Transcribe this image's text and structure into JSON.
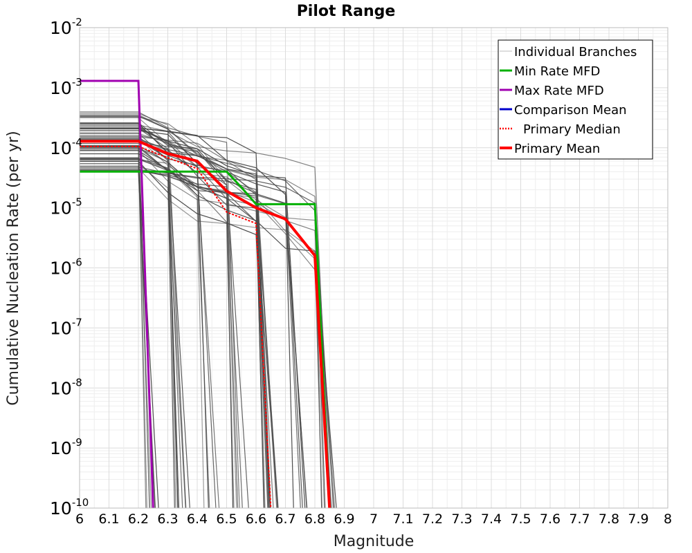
{
  "chart_data": {
    "type": "line",
    "title": "Pilot Range",
    "xlabel": "Magnitude",
    "ylabel": "Cumulative Nucleation Rate (per yr)",
    "xlim": [
      6,
      8
    ],
    "ylim_log10": [
      -10,
      -2
    ],
    "yscale": "log",
    "grid": true,
    "legend_position": "top-right",
    "x_ticks": [
      "6",
      "6.1",
      "6.2",
      "6.3",
      "6.4",
      "6.5",
      "6.6",
      "6.7",
      "6.8",
      "6.9",
      "7",
      "7.1",
      "7.2",
      "7.3",
      "7.4",
      "7.5",
      "7.6",
      "7.7",
      "7.8",
      "7.9",
      "8"
    ],
    "y_ticks": [
      {
        "base": "10",
        "exp": "-2"
      },
      {
        "base": "10",
        "exp": "-3"
      },
      {
        "base": "10",
        "exp": "-4"
      },
      {
        "base": "10",
        "exp": "-5"
      },
      {
        "base": "10",
        "exp": "-6"
      },
      {
        "base": "10",
        "exp": "-7"
      },
      {
        "base": "10",
        "exp": "-8"
      },
      {
        "base": "10",
        "exp": "-9"
      },
      {
        "base": "10",
        "exp": "-10"
      }
    ],
    "legend": [
      {
        "label": "Individual Branches",
        "color": "#bbbbbb",
        "style": "thin"
      },
      {
        "label": "Min Rate MFD",
        "color": "#00b000",
        "style": "solid"
      },
      {
        "label": "Max Rate MFD",
        "color": "#a000b0",
        "style": "solid"
      },
      {
        "label": "Comparison Mean",
        "color": "#0000cc",
        "style": "solid"
      },
      {
        "label": "Primary Median",
        "color": "#ff0000",
        "style": "dotted"
      },
      {
        "label": "Primary Mean",
        "color": "#ff0000",
        "style": "thick"
      }
    ],
    "series": [
      {
        "name": "Min Rate MFD",
        "color": "#00b000",
        "x": [
          6.0,
          6.5,
          6.55,
          6.6,
          6.8,
          6.85
        ],
        "y": [
          4e-05,
          4e-05,
          2.2e-05,
          1.15e-05,
          1.15e-05,
          1e-10
        ]
      },
      {
        "name": "Max Rate MFD",
        "color": "#a000b0",
        "x": [
          6.0,
          6.2,
          6.25
        ],
        "y": [
          0.0013,
          0.0013,
          1e-10
        ]
      },
      {
        "name": "Primary Median",
        "color": "#ff0000",
        "x": [
          6.0,
          6.2,
          6.3,
          6.4,
          6.5,
          6.6,
          6.65
        ],
        "y": [
          0.000105,
          0.000105,
          6.8e-05,
          4.5e-05,
          8.5e-06,
          5.5e-06,
          1e-10
        ]
      },
      {
        "name": "Primary Mean",
        "color": "#ff0000",
        "x": [
          6.0,
          6.2,
          6.3,
          6.4,
          6.5,
          6.6,
          6.7,
          6.8,
          6.85
        ],
        "y": [
          0.000128,
          0.000128,
          8e-05,
          6e-05,
          1.9e-05,
          1e-05,
          6.5e-06,
          1.6e-06,
          1e-10
        ]
      }
    ],
    "branches": {
      "count": 60,
      "color": "#4a4a4a",
      "start_rate_range": [
        4e-05,
        0.0004
      ],
      "cutoff_magnitudes": [
        6.2,
        6.3,
        6.4,
        6.5,
        6.6,
        6.7,
        6.8
      ],
      "drop_to": 1e-10
    }
  }
}
